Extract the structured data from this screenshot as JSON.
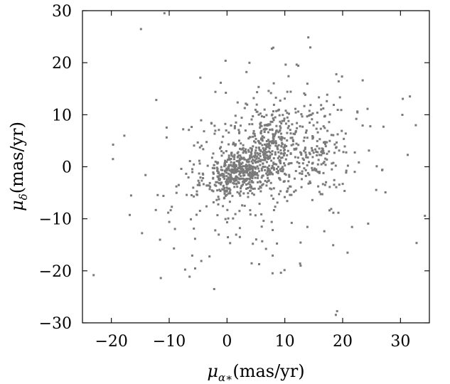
{
  "chart_data": {
    "type": "scatter",
    "title": "",
    "xlabel": {
      "symbol": "μ",
      "subscript": "α∗",
      "unit": "(mas/yr)"
    },
    "ylabel": {
      "symbol": "μ",
      "subscript": "δ",
      "unit": "(mas/yr)"
    },
    "xlim": [
      -25,
      35
    ],
    "ylim": [
      -30,
      30
    ],
    "xticks": [
      -20,
      -10,
      0,
      10,
      20,
      30
    ],
    "yticks": [
      -30,
      -20,
      -10,
      0,
      10,
      20,
      30
    ],
    "xtick_labels": [
      "−20",
      "−10",
      "0",
      "10",
      "20",
      "30"
    ],
    "ytick_labels": [
      "−30",
      "−20",
      "−10",
      "0",
      "10",
      "20",
      "30"
    ],
    "grid": false,
    "legend": "none",
    "marker_color": "#7a7a7a",
    "n_points": 1200,
    "components": [
      {
        "fraction": 0.28,
        "x_mean": 1.5,
        "y_mean": -1.0,
        "x_sd": 2.6,
        "y_sd": 2.2,
        "rho": 0.35
      },
      {
        "fraction": 0.22,
        "x_mean": 6.5,
        "y_mean": 3.0,
        "x_sd": 2.8,
        "y_sd": 3.8,
        "rho": 0.3
      },
      {
        "fraction": 0.17,
        "x_mean": 14.0,
        "y_mean": 4.0,
        "x_sd": 3.8,
        "y_sd": 4.5,
        "rho": 0.2
      },
      {
        "fraction": 0.23,
        "x_mean": 5.0,
        "y_mean": 0.0,
        "x_sd": 7.5,
        "y_sd": 8.0,
        "rho": 0.2
      },
      {
        "fraction": 0.1,
        "x_mean": 5.0,
        "y_mean": 0.0,
        "x_sd": 14.0,
        "y_sd": 14.0,
        "rho": 0.1
      }
    ]
  }
}
